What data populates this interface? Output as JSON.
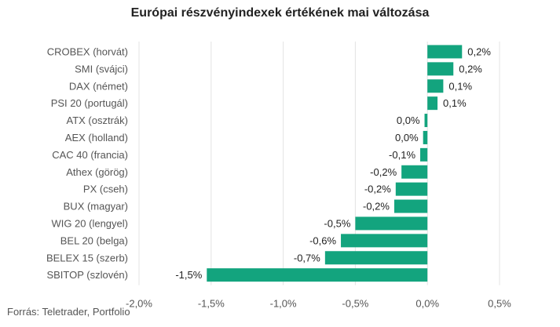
{
  "chart_data": {
    "type": "bar",
    "orientation": "horizontal",
    "title": "Európai részvényindexek értékének mai változása",
    "source": "Forrás: Teletrader, Portfolio",
    "bar_color": "#13a47e",
    "categories": [
      "CROBEX (horvát)",
      "SMI (svájci)",
      "DAX (német)",
      "PSI 20 (portugál)",
      "ATX (osztrák)",
      "AEX (holland)",
      "CAC 40 (francia)",
      "Athex (görög)",
      "PX (cseh)",
      "BUX (magyar)",
      "WIG 20 (lengyel)",
      "BEL 20 (belga)",
      "BELEX 15 (szerb)",
      "SBITOP (szlovén)"
    ],
    "values": [
      0.24,
      0.18,
      0.11,
      0.07,
      -0.02,
      -0.03,
      -0.05,
      -0.18,
      -0.22,
      -0.23,
      -0.5,
      -0.6,
      -0.71,
      -1.53
    ],
    "data_labels": [
      "0,2%",
      "0,2%",
      "0,1%",
      "0,1%",
      "0,0%",
      "0,0%",
      "-0,1%",
      "-0,2%",
      "-0,2%",
      "-0,2%",
      "-0,5%",
      "-0,6%",
      "-0,7%",
      "-1,5%"
    ],
    "x_ticks": [
      -2.0,
      -1.5,
      -1.0,
      -0.5,
      0.0,
      0.5
    ],
    "x_tick_labels": [
      "-2,0%",
      "-1,5%",
      "-1,0%",
      "-0,5%",
      "0,0%",
      "0,5%"
    ],
    "xlim": [
      -2.0,
      0.5
    ],
    "grid": true,
    "legend": "none"
  }
}
